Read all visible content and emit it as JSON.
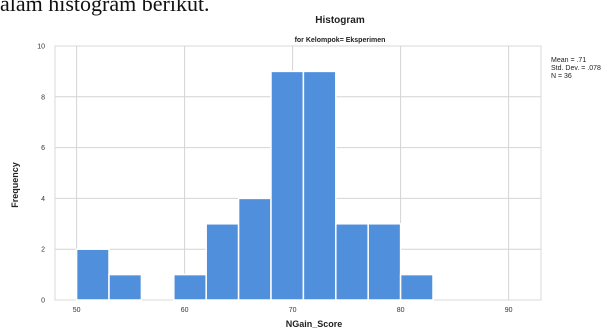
{
  "caption": "alam histogram berikut.",
  "chart_data": {
    "type": "bar",
    "title": "Histogram",
    "subtitle": "for Kelompok= Eksperimen",
    "xlabel": "NGain_Score",
    "ylabel": "Frequency",
    "xlim": [
      48,
      93
    ],
    "ylim": [
      0,
      10
    ],
    "x_ticks": [
      50,
      60,
      70,
      80,
      90
    ],
    "y_ticks": [
      0,
      2,
      4,
      6,
      8,
      10
    ],
    "bin_width": 3,
    "bins": [
      {
        "start": 50,
        "value": 2
      },
      {
        "start": 53,
        "value": 1
      },
      {
        "start": 56,
        "value": 0
      },
      {
        "start": 59,
        "value": 1
      },
      {
        "start": 62,
        "value": 3
      },
      {
        "start": 65,
        "value": 4
      },
      {
        "start": 68,
        "value": 9
      },
      {
        "start": 71,
        "value": 9
      },
      {
        "start": 74,
        "value": 3
      },
      {
        "start": 77,
        "value": 3
      },
      {
        "start": 80,
        "value": 1
      }
    ],
    "stats": [
      "Mean = .71",
      "Std. Dev. = .078",
      "N = 36"
    ],
    "bar_color": "#4f8fdc",
    "grid": true
  }
}
